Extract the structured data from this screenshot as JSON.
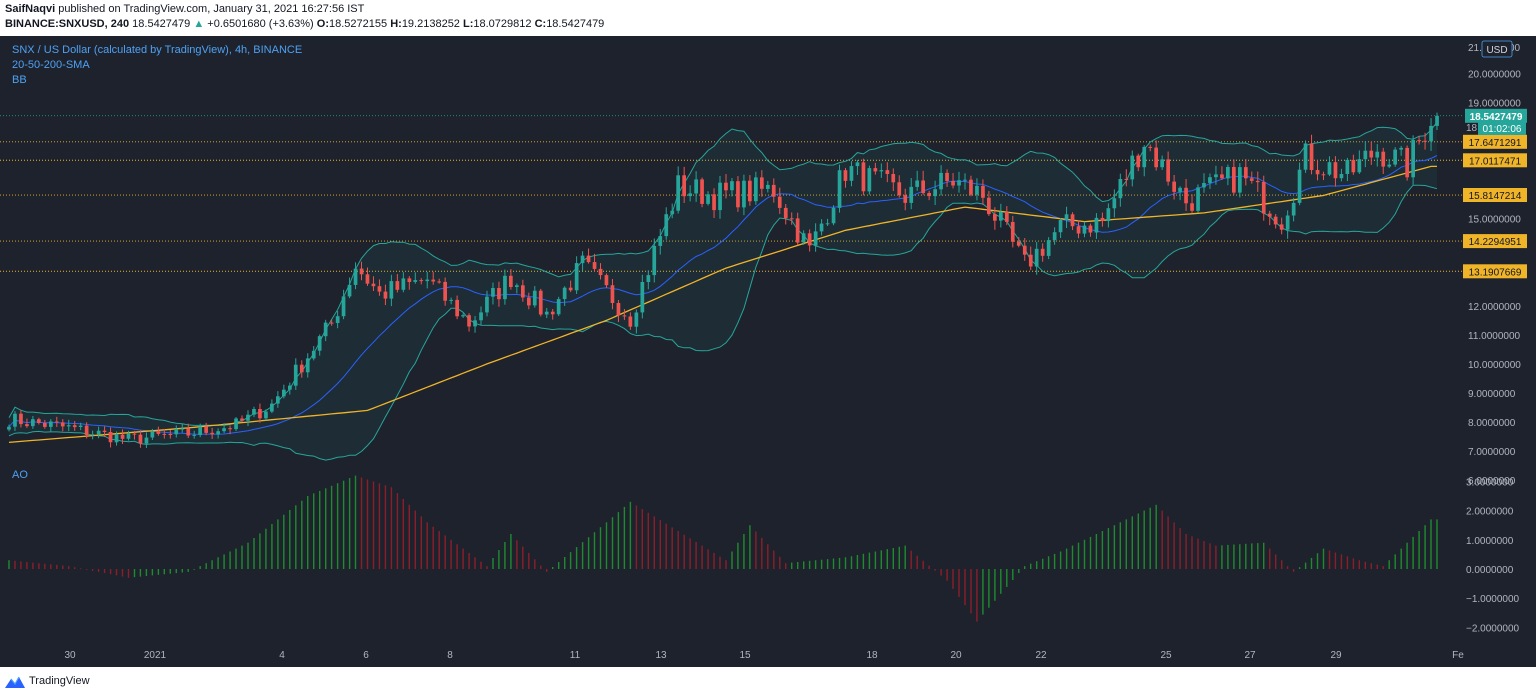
{
  "header": {
    "publisher": "SaifNaqvi",
    "published_text": " published on TradingView.com, January 31, 2021 16:27:56 IST",
    "symbol": "BINANCE:SNXUSD, 240",
    "last_price": "18.5427479",
    "change_arrow": "▲",
    "change": "+0.6501680 (+3.63%)",
    "o_label": "O:",
    "o_value": "18.5272155",
    "h_label": "H:",
    "h_value": "19.2138252",
    "l_label": "L:",
    "l_value": "18.0729812",
    "c_label": "C:",
    "c_value": "18.5427479"
  },
  "legend": {
    "title": "SNX / US Dollar (calculated by TradingView), 4h, BINANCE",
    "sma": "20-50-200-SMA",
    "bb": "BB",
    "ao": "AO"
  },
  "price_axis": {
    "currency": "USD",
    "top_partial": "21.",
    "top_partial2": "00",
    "ticks": [
      "20.0000000",
      "19.0000000",
      "15.0000000",
      "12.0000000",
      "11.0000000",
      "10.0000000",
      "9.0000000",
      "8.0000000",
      "7.0000000",
      "6.0000000"
    ],
    "tick_values": [
      20,
      19,
      15,
      12,
      11,
      10,
      9,
      8,
      7,
      6
    ],
    "current_price": "18.5427479",
    "countdown": "01:02:06",
    "partial_label": "18",
    "levels": [
      "17.6471291",
      "17.0117471",
      "15.8147214",
      "14.2294951",
      "13.1907669"
    ],
    "level_values": [
      17.6471291,
      17.0117471,
      15.8147214,
      14.2294951,
      13.1907669
    ]
  },
  "ao_axis": {
    "ticks": [
      "3.0000000",
      "2.0000000",
      "1.0000000",
      "0.0000000",
      "−1.0000000",
      "−2.0000000"
    ],
    "tick_values": [
      3,
      2,
      1,
      0,
      -1,
      -2
    ]
  },
  "time_axis": {
    "labels": [
      "30",
      "2021",
      "4",
      "6",
      "8",
      "11",
      "13",
      "15",
      "18",
      "20",
      "22",
      "25",
      "27",
      "29",
      "Fe"
    ]
  },
  "footer": {
    "brand": "TradingView"
  },
  "colors": {
    "background": "#1e222d",
    "up": "#26a69a",
    "down": "#ef5350",
    "sma20": "#2962ff",
    "sma200": "#f0b429",
    "bb_band": "#26a69a",
    "level_line": "#f0b429",
    "ao_up": "#1e8c2e",
    "ao_down": "#8c1e2a"
  },
  "chart_data": {
    "type": "candlestick",
    "title": "SNX / US Dollar (calculated by TradingView), 4h, BINANCE",
    "x_labels": [
      "30",
      "2021",
      "4",
      "6",
      "8",
      "11",
      "13",
      "15",
      "18",
      "20",
      "22",
      "25",
      "27",
      "29",
      "Fe"
    ],
    "y_range": [
      6,
      21
    ],
    "close_anchors": {
      "x_index": [
        0,
        10,
        20,
        30,
        38,
        44,
        54,
        58,
        62,
        70,
        77,
        84,
        90,
        96,
        104,
        112,
        118,
        128,
        134,
        140,
        150,
        158,
        163,
        170,
        176,
        183,
        190,
        197,
        206,
        213,
        217,
        224,
        229,
        234,
        238
      ],
      "close": [
        8.1,
        7.8,
        7.4,
        7.6,
        7.9,
        8.6,
        11.4,
        13.4,
        12.4,
        12.9,
        11.4,
        13.0,
        11.7,
        13.4,
        11.6,
        16.1,
        15.8,
        16.0,
        13.9,
        16.7,
        15.8,
        16.3,
        15.8,
        13.4,
        14.7,
        14.9,
        17.7,
        15.6,
        16.5,
        15.0,
        17.1,
        16.5,
        17.4,
        16.8,
        18.54
      ]
    },
    "sma200_anchors": {
      "x_index": [
        0,
        30,
        60,
        80,
        100,
        120,
        140,
        160,
        180,
        200,
        220,
        238
      ],
      "value": [
        7.3,
        7.8,
        8.4,
        10.0,
        11.5,
        13.3,
        14.6,
        15.4,
        14.9,
        15.2,
        15.8,
        16.8
      ]
    },
    "ao": {
      "x_index": [
        0,
        10,
        20,
        30,
        40,
        50,
        58,
        64,
        70,
        80,
        84,
        90,
        100,
        104,
        108,
        120,
        124,
        130,
        140,
        150,
        157,
        162,
        170,
        176,
        182,
        192,
        197,
        202,
        210,
        215,
        220,
        226,
        230,
        238
      ],
      "value": [
        0.3,
        0.1,
        -0.3,
        -0.1,
        0.9,
        2.5,
        3.2,
        2.8,
        1.6,
        0.1,
        1.2,
        -0.1,
        1.6,
        2.3,
        1.8,
        0.3,
        1.5,
        0.2,
        0.4,
        0.8,
        -0.4,
        -1.8,
        0.1,
        0.6,
        1.2,
        2.2,
        1.2,
        0.8,
        0.9,
        -0.1,
        0.7,
        0.3,
        0.1,
        1.7
      ]
    },
    "levels": [
      17.6471291,
      17.0117471,
      15.8147214,
      14.2294951,
      13.1907669
    ],
    "last": 18.5427479
  }
}
